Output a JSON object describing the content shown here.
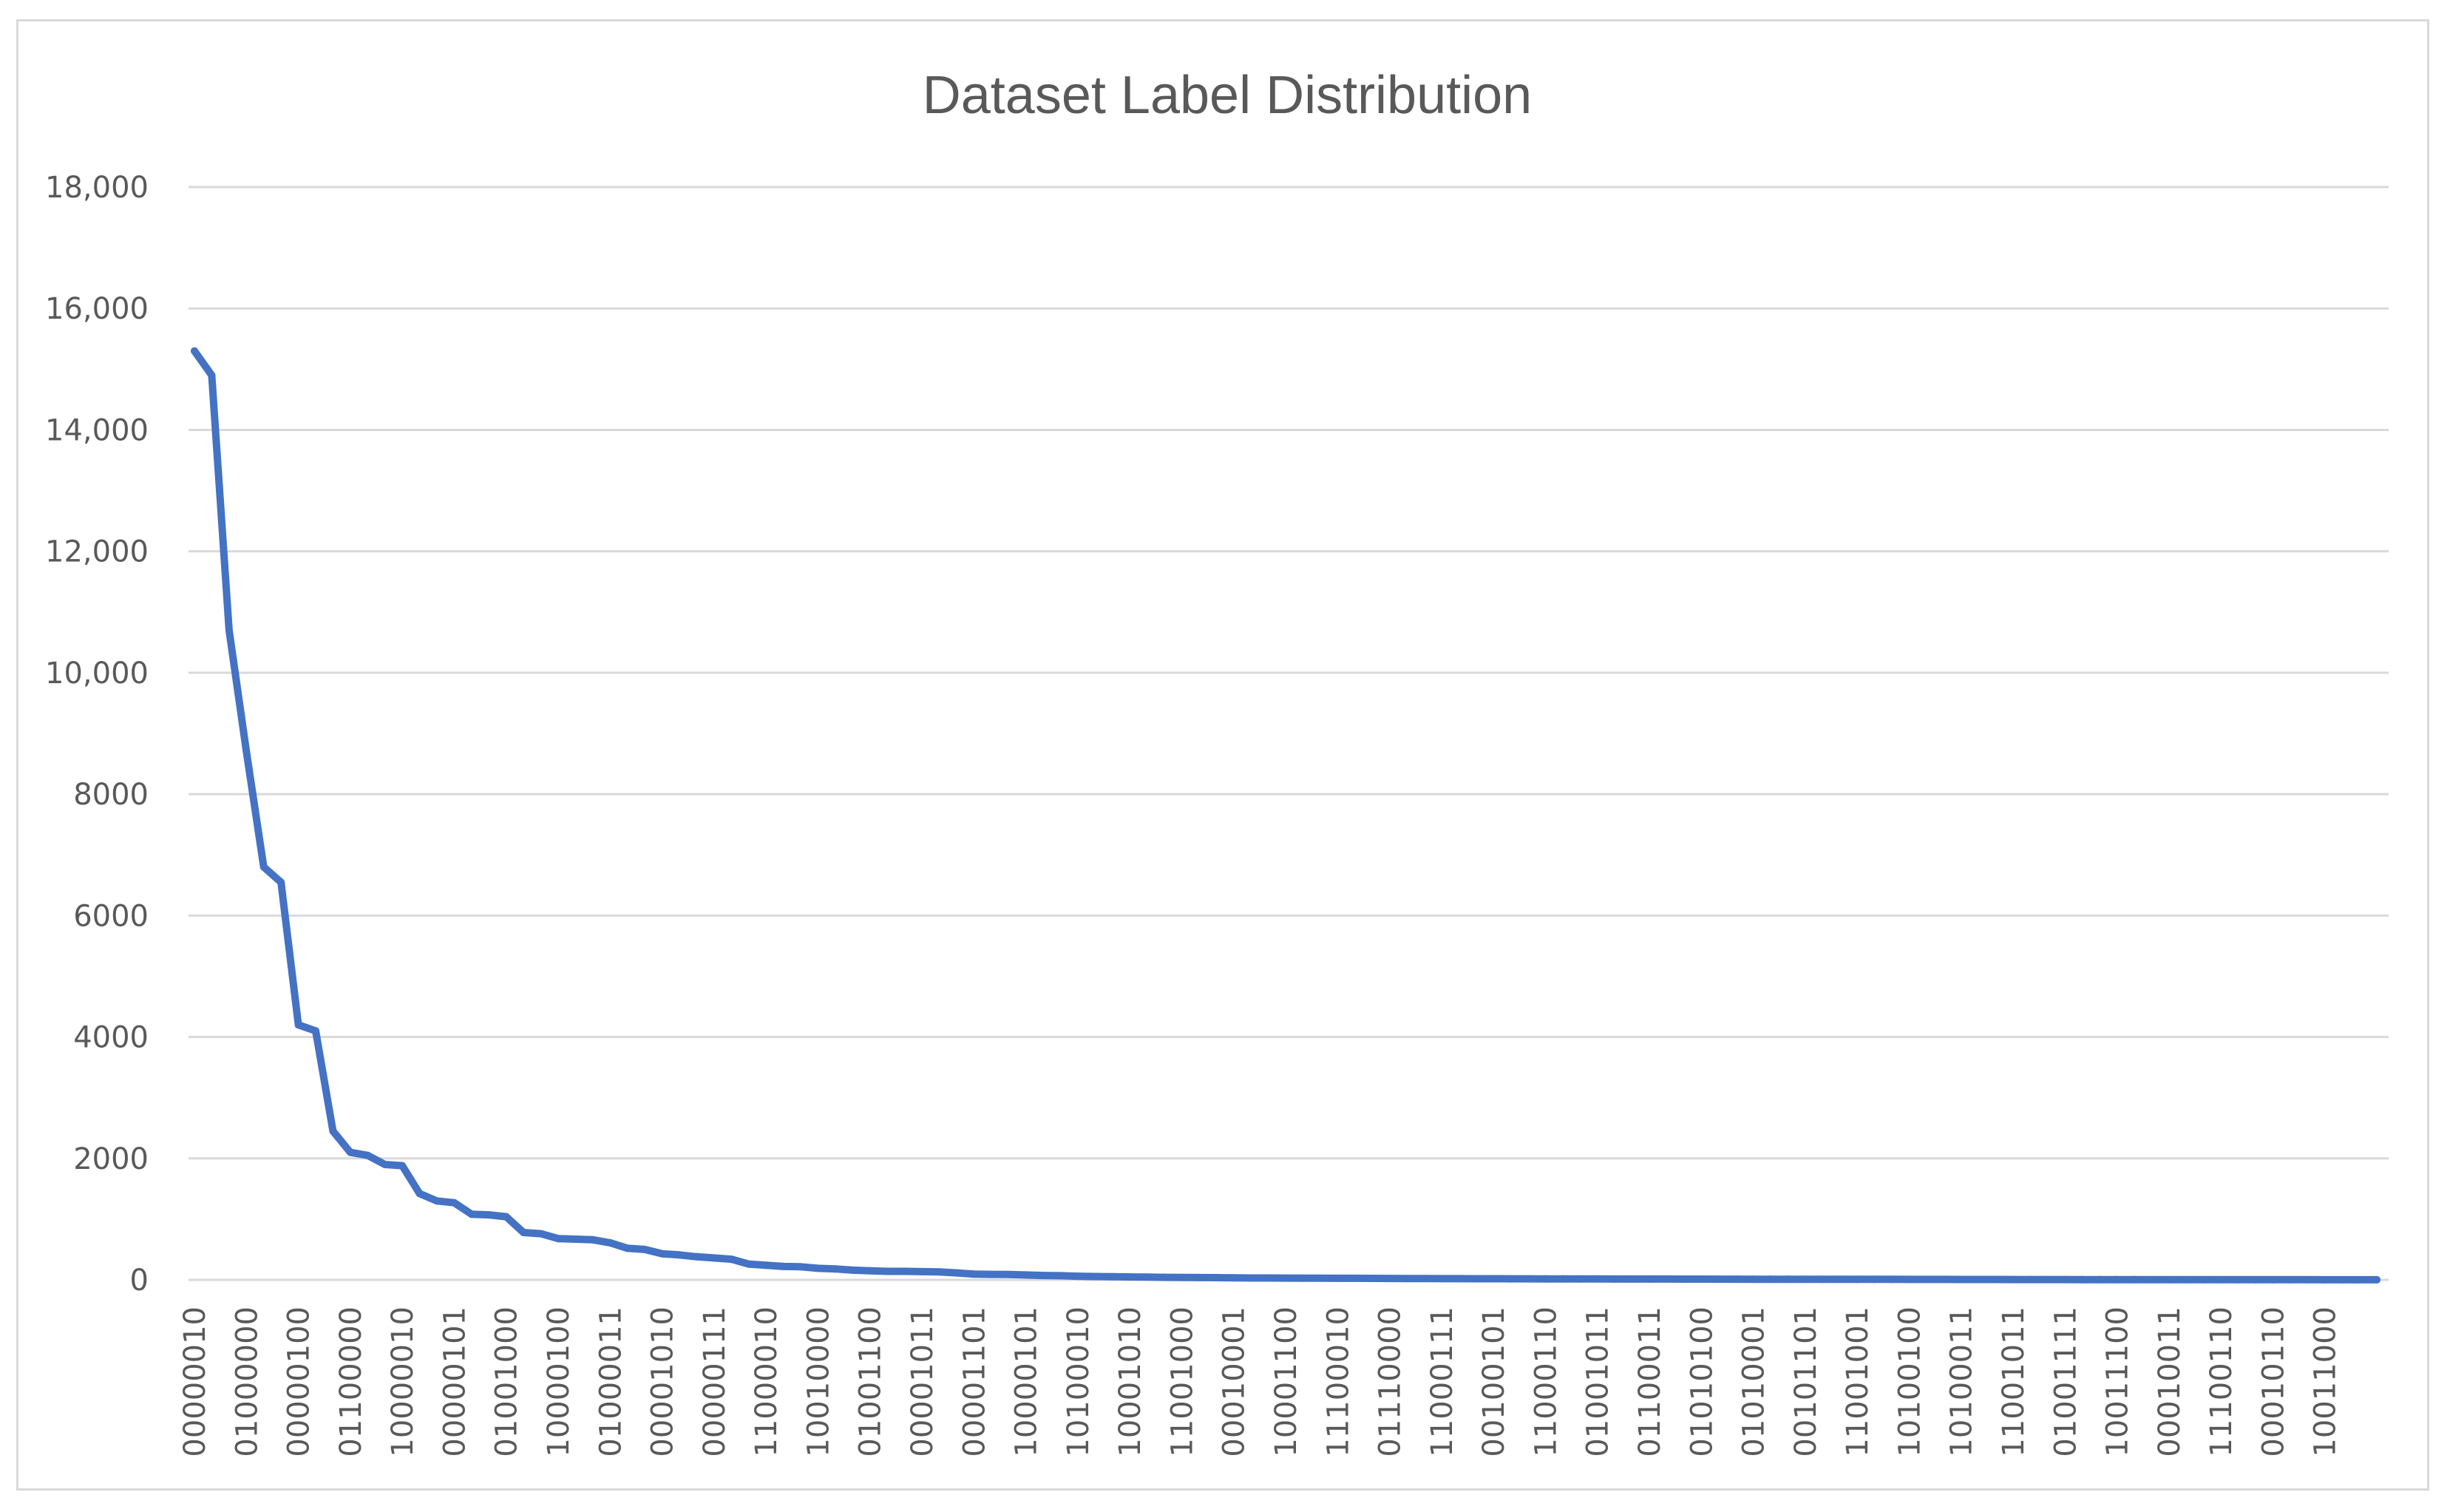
{
  "chart_data": {
    "type": "line",
    "title": "Dataset Label Distribution",
    "xlabel": "",
    "ylabel": "",
    "ylim": [
      0,
      18000
    ],
    "y_ticks": [
      {
        "value": 0,
        "label": "0"
      },
      {
        "value": 2000,
        "label": "2000"
      },
      {
        "value": 4000,
        "label": "4000"
      },
      {
        "value": 6000,
        "label": "6000"
      },
      {
        "value": 8000,
        "label": "8000"
      },
      {
        "value": 10000,
        "label": "10,000"
      },
      {
        "value": 12000,
        "label": "12,000"
      },
      {
        "value": 14000,
        "label": "14,000"
      },
      {
        "value": 16000,
        "label": "16,000"
      },
      {
        "value": 18000,
        "label": "18,000"
      }
    ],
    "grid": true,
    "legend": "none",
    "point_count": 127,
    "x_tick_labels": [
      {
        "index": 0,
        "label": "00000010"
      },
      {
        "index": 3,
        "label": "01000000"
      },
      {
        "index": 6,
        "label": "00000100"
      },
      {
        "index": 9,
        "label": "01100000"
      },
      {
        "index": 12,
        "label": "10000010"
      },
      {
        "index": 15,
        "label": "00000101"
      },
      {
        "index": 18,
        "label": "01001000"
      },
      {
        "index": 21,
        "label": "10000100"
      },
      {
        "index": 24,
        "label": "01000011"
      },
      {
        "index": 27,
        "label": "00001010"
      },
      {
        "index": 30,
        "label": "00000111"
      },
      {
        "index": 33,
        "label": "11000010"
      },
      {
        "index": 36,
        "label": "10010000"
      },
      {
        "index": 39,
        "label": "01001100"
      },
      {
        "index": 42,
        "label": "00001011"
      },
      {
        "index": 45,
        "label": "00001101"
      },
      {
        "index": 48,
        "label": "10000101"
      },
      {
        "index": 51,
        "label": "10100010"
      },
      {
        "index": 54,
        "label": "10001010"
      },
      {
        "index": 57,
        "label": "11001000"
      },
      {
        "index": 60,
        "label": "00010001"
      },
      {
        "index": 63,
        "label": "10001100"
      },
      {
        "index": 66,
        "label": "11100010"
      },
      {
        "index": 69,
        "label": "01110000"
      },
      {
        "index": 72,
        "label": "11000111"
      },
      {
        "index": 75,
        "label": "00100101"
      },
      {
        "index": 78,
        "label": "11000110"
      },
      {
        "index": 81,
        "label": "01001011"
      },
      {
        "index": 84,
        "label": "01100011"
      },
      {
        "index": 87,
        "label": "01010100"
      },
      {
        "index": 90,
        "label": "01010001"
      },
      {
        "index": 93,
        "label": "00101101"
      },
      {
        "index": 96,
        "label": "11001001"
      },
      {
        "index": 99,
        "label": "10100100"
      },
      {
        "index": 102,
        "label": "10100011"
      },
      {
        "index": 105,
        "label": "11001011"
      },
      {
        "index": 108,
        "label": "01001111"
      },
      {
        "index": 111,
        "label": "10011100"
      },
      {
        "index": 114,
        "label": "00010011"
      },
      {
        "index": 117,
        "label": "11100110"
      },
      {
        "index": 120,
        "label": "00010110"
      },
      {
        "index": 123,
        "label": "10011000"
      }
    ],
    "series": [
      {
        "color": "#4472c4",
        "values": [
          15300,
          14900,
          10700,
          8700,
          6800,
          6550,
          4200,
          4100,
          2450,
          2100,
          2050,
          1900,
          1880,
          1420,
          1300,
          1270,
          1080,
          1070,
          1040,
          780,
          760,
          680,
          670,
          660,
          610,
          520,
          500,
          430,
          410,
          380,
          360,
          340,
          260,
          240,
          220,
          215,
          190,
          180,
          160,
          150,
          140,
          140,
          135,
          130,
          115,
          95,
          90,
          88,
          80,
          72,
          68,
          60,
          55,
          52,
          48,
          45,
          42,
          40,
          38,
          36,
          33,
          31,
          30,
          29,
          28,
          27,
          26,
          25,
          24,
          23,
          22,
          21,
          20,
          19,
          18,
          18,
          17,
          17,
          16,
          16,
          15,
          15,
          14,
          14,
          13,
          13,
          12,
          12,
          11,
          11,
          10,
          10,
          10,
          9,
          9,
          9,
          8,
          8,
          8,
          7,
          7,
          7,
          6,
          6,
          6,
          5,
          5,
          5,
          5,
          4,
          4,
          4,
          4,
          3,
          3,
          3,
          3,
          3,
          2,
          2,
          2,
          2,
          2,
          1,
          1,
          1,
          1
        ]
      }
    ]
  }
}
